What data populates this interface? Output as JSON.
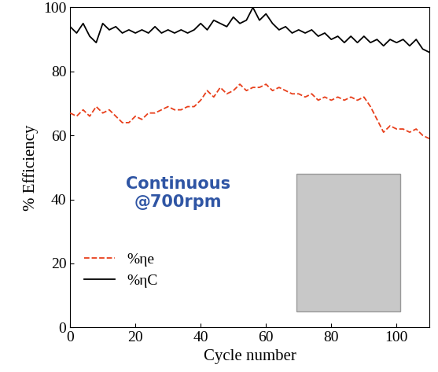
{
  "chart_data": {
    "type": "line",
    "x_label": "Cycle number",
    "y_label": "% Efficiency",
    "annotation": "Continuous\n@700rpm",
    "x": [
      0,
      2,
      4,
      6,
      8,
      10,
      12,
      14,
      16,
      18,
      20,
      22,
      24,
      26,
      28,
      30,
      32,
      34,
      36,
      38,
      40,
      42,
      44,
      46,
      48,
      50,
      52,
      54,
      56,
      58,
      60,
      62,
      64,
      66,
      68,
      70,
      72,
      74,
      76,
      78,
      80,
      82,
      84,
      86,
      88,
      90,
      92,
      94,
      96,
      98,
      100,
      102,
      104,
      106,
      108,
      110
    ],
    "series": [
      {
        "name": "%ηe",
        "color": "#e8401c",
        "line_style": "dashed",
        "values": [
          67,
          66,
          68,
          66,
          69,
          67,
          68,
          66,
          64,
          64,
          66,
          65,
          67,
          67,
          68,
          69,
          68,
          68,
          69,
          69,
          71,
          74,
          72,
          75,
          73,
          74,
          76,
          74,
          75,
          75,
          76,
          74,
          75,
          74,
          73,
          73,
          72,
          73,
          71,
          72,
          71,
          72,
          71,
          72,
          71,
          72,
          69,
          65,
          61,
          63,
          62,
          62,
          61,
          62,
          60,
          59
        ]
      },
      {
        "name": "%ηC",
        "color": "#000000",
        "line_style": "solid",
        "values": [
          94,
          92,
          95,
          91,
          89,
          95,
          93,
          94,
          92,
          93,
          92,
          93,
          92,
          94,
          92,
          93,
          92,
          93,
          92,
          93,
          95,
          93,
          96,
          95,
          94,
          97,
          95,
          96,
          100,
          96,
          98,
          95,
          93,
          94,
          92,
          93,
          92,
          93,
          91,
          92,
          90,
          91,
          89,
          91,
          89,
          91,
          89,
          90,
          88,
          90,
          89,
          90,
          88,
          90,
          87,
          86
        ]
      }
    ],
    "xlim": [
      0,
      110
    ],
    "xticks": [
      0,
      20,
      40,
      60,
      80,
      100
    ],
    "ylim": [
      0,
      100
    ],
    "yticks": [
      0,
      20,
      40,
      60,
      80,
      100
    ],
    "legend": "lower left",
    "grid": false
  }
}
